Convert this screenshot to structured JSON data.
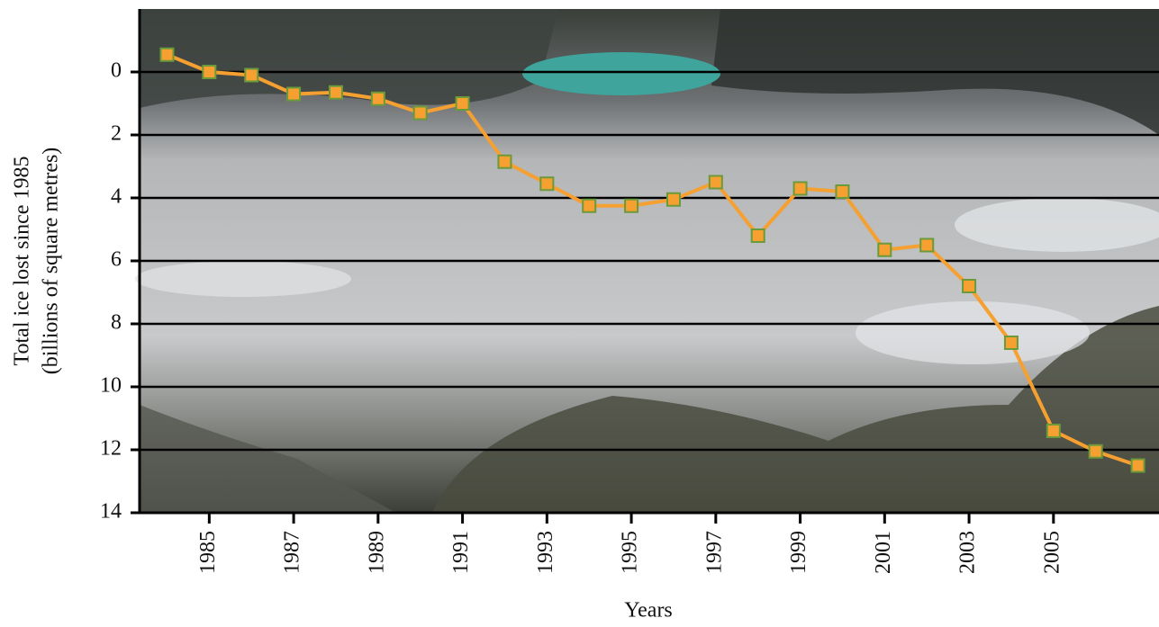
{
  "chart_data": {
    "type": "line",
    "x_label": "Years",
    "y_label": [
      "Total ice lost since 1985",
      "(billions of square metres)"
    ],
    "x": [
      1984,
      1985,
      1986,
      1987,
      1988,
      1989,
      1990,
      1991,
      1992,
      1993,
      1994,
      1995,
      1996,
      1997,
      1998,
      1999,
      2000,
      2001,
      2002,
      2003,
      2004,
      2005,
      2006,
      2007
    ],
    "series": [
      {
        "color": "#f5a030",
        "marker_edge": "#6a9a3a",
        "values": [
          -0.55,
          0,
          0.1,
          0.7,
          0.65,
          0.85,
          1.3,
          1.0,
          2.85,
          3.55,
          4.25,
          4.25,
          4.05,
          3.5,
          5.2,
          3.7,
          3.8,
          5.65,
          5.5,
          6.8,
          8.6,
          11.4,
          12.05,
          12.5
        ]
      }
    ],
    "xlim": [
      1983.35,
      2007.5
    ],
    "xticks": [
      1985,
      1987,
      1989,
      1991,
      1993,
      1995,
      1997,
      1999,
      2001,
      2003,
      2005
    ],
    "ylim": [
      -2,
      14
    ],
    "y_inverted": true,
    "yticks": [
      0,
      2,
      4,
      6,
      8,
      10,
      12,
      14
    ],
    "grid": true
  }
}
